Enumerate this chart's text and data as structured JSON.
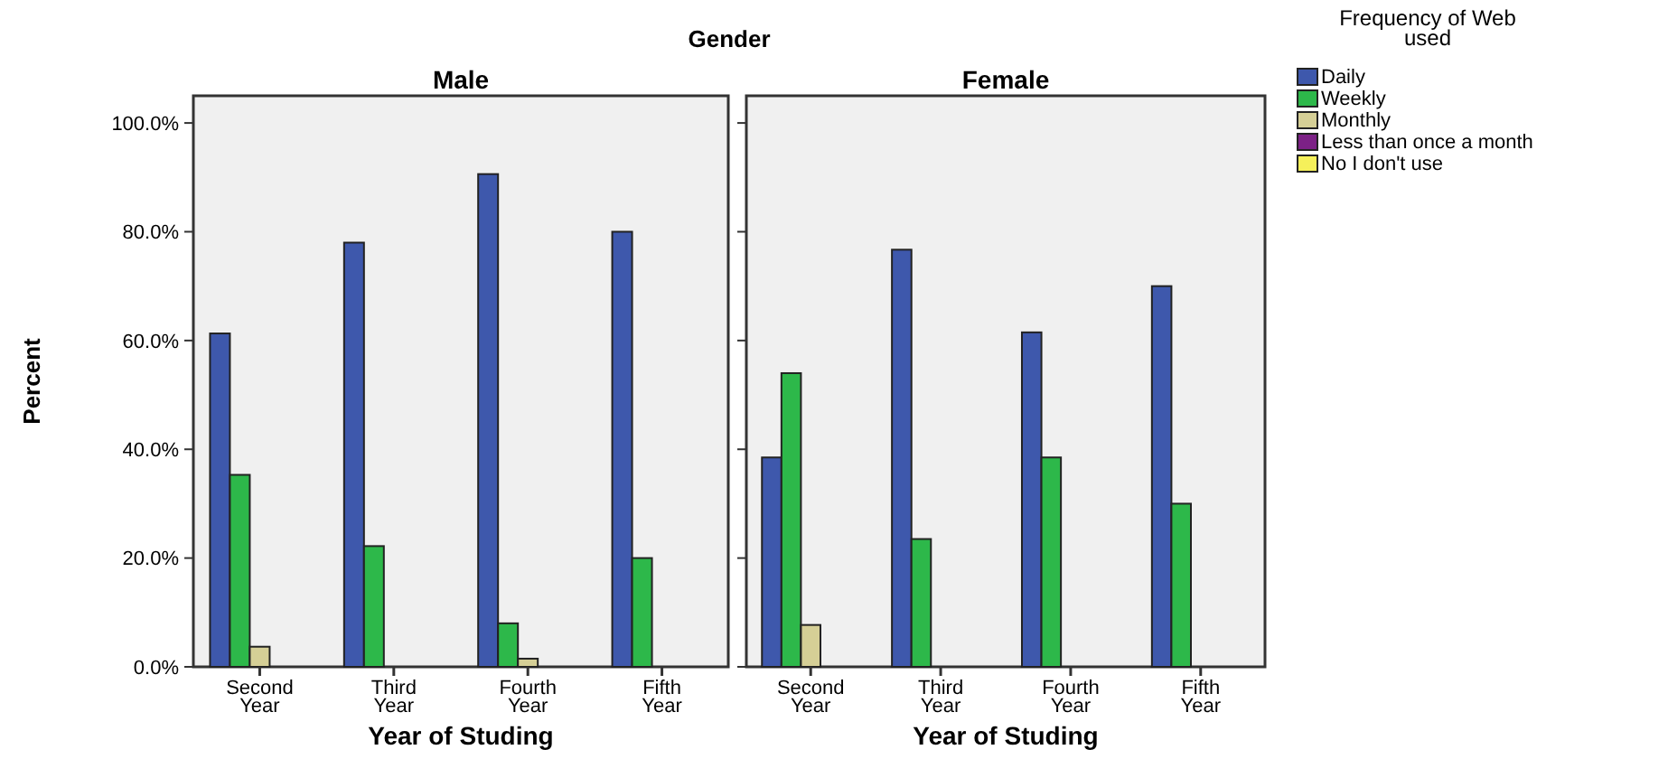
{
  "chart_data": [
    {
      "type": "bar",
      "title": "Male",
      "annotations": [
        "Gender"
      ],
      "xlabel": "Year of Studing",
      "ylabel": "Percent",
      "legend_title": "Frequency of Web used",
      "legend": "right",
      "categories": [
        "Second Year",
        "Third Year",
        "Fourth Year",
        "Fifth Year"
      ],
      "ylim": [
        0,
        105
      ],
      "yticks": [
        {
          "value": 0,
          "label": "0.0%"
        },
        {
          "value": 20,
          "label": "20.0%"
        },
        {
          "value": 40,
          "label": "40.0%"
        },
        {
          "value": 60,
          "label": "60.0%"
        },
        {
          "value": 80,
          "label": "80.0%"
        },
        {
          "value": 100,
          "label": "100.0%"
        }
      ],
      "grid": false,
      "series": [
        {
          "name": "Daily",
          "color": "#3e58ac",
          "values": [
            61.3,
            78,
            90.6,
            80
          ]
        },
        {
          "name": "Weekly",
          "color": "#2db84a",
          "values": [
            35.3,
            22.2,
            8,
            20
          ]
        },
        {
          "name": "Monthly",
          "color": "#d5cf96",
          "values": [
            3.7,
            0,
            1.5,
            0
          ]
        },
        {
          "name": "Less than once a month",
          "color": "#7c2186",
          "values": [
            0,
            0,
            0,
            0
          ]
        },
        {
          "name": "No I don't use",
          "color": "#f5f05a",
          "values": [
            0,
            0,
            0,
            0
          ]
        }
      ]
    },
    {
      "type": "bar",
      "title": "Female",
      "xlabel": "Year of Studing",
      "tick_labels": "x",
      "categories": [
        "Second Year",
        "Third Year",
        "Fourth Year",
        "Fifth Year"
      ],
      "ylim": [
        0,
        105
      ],
      "yticks": [
        {
          "value": 0,
          "label": null
        },
        {
          "value": 20,
          "label": null
        },
        {
          "value": 40,
          "label": null
        },
        {
          "value": 60,
          "label": null
        },
        {
          "value": 80,
          "label": null
        },
        {
          "value": 100,
          "label": null
        }
      ],
      "grid": false,
      "series": [
        {
          "color": "#3e58ac",
          "values": [
            38.5,
            76.7,
            61.5,
            70
          ]
        },
        {
          "color": "#2db84a",
          "values": [
            54,
            23.5,
            38.5,
            30
          ]
        },
        {
          "color": "#d5cf96",
          "values": [
            7.7,
            0,
            0,
            0
          ]
        },
        {
          "color": "#7c2186",
          "values": [
            0,
            0,
            0,
            0
          ]
        },
        {
          "color": "#f5f05a",
          "values": [
            0,
            0,
            0,
            0
          ]
        }
      ]
    }
  ]
}
